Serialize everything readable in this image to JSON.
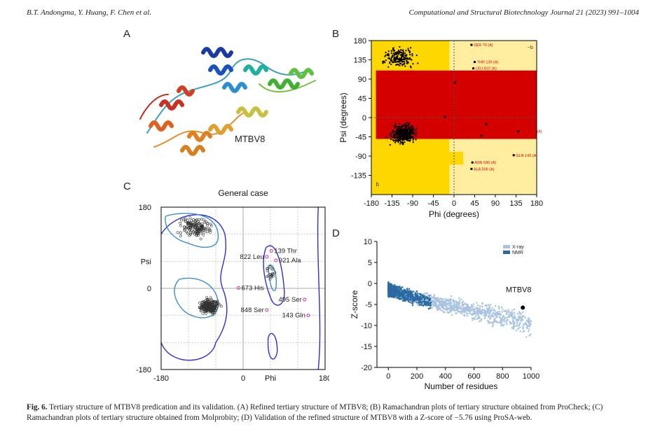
{
  "running_head": {
    "authors": "B.T. Andongma, Y. Huang, F. Chen et al.",
    "journal": "Computational and Structural Biotechnology Journal 21 (2023) 991–1004"
  },
  "panels": {
    "a": {
      "letter": "A",
      "label": "MTBV8"
    },
    "b": {
      "letter": "B"
    },
    "c": {
      "letter": "C"
    },
    "d": {
      "letter": "D"
    }
  },
  "chart_data": [
    {
      "panel": "B",
      "type": "scatter",
      "xlabel": "Phi (degrees)",
      "ylabel": "Psi (degrees)",
      "xlim": [
        -180,
        180
      ],
      "ylim": [
        -180,
        180
      ],
      "x_ticks": [
        "-180",
        "-135",
        "-90",
        "-45",
        "0",
        "45",
        "90",
        "135",
        "180"
      ],
      "y_ticks": [
        "180",
        "135",
        "90",
        "45",
        "0",
        "-45",
        "-90",
        "-135"
      ],
      "region_letters": [
        "A",
        "B",
        "L",
        "a",
        "b",
        "p",
        "~b"
      ],
      "annotations": [
        {
          "label": "SER 70 (A)",
          "x": 38,
          "y": 170
        },
        {
          "label": "THR 139 (A)",
          "x": 45,
          "y": 130
        },
        {
          "label": "LEU 822 (A)",
          "x": 42,
          "y": 115
        },
        {
          "label": "PRO 701 (A)",
          "x": 2,
          "y": 82
        },
        {
          "label": "HIS 673 (A)",
          "x": -20,
          "y": 2
        },
        {
          "label": "ALA 921 (A)",
          "x": 70,
          "y": -15
        },
        {
          "label": "SER 848 (A)",
          "x": 60,
          "y": -42
        },
        {
          "label": "SER 495 (A)",
          "x": 140,
          "y": -32
        },
        {
          "label": "GLN 143 (A)",
          "x": 130,
          "y": -88
        },
        {
          "label": "ASN 690 (A)",
          "x": 40,
          "y": -105
        },
        {
          "label": "ALA 506 (A)",
          "x": 38,
          "y": -120
        }
      ]
    },
    {
      "panel": "C",
      "type": "scatter",
      "title": "General case",
      "xlabel": "Phi",
      "ylabel": "Psi",
      "xlim": [
        -180,
        180
      ],
      "ylim": [
        -180,
        180
      ],
      "x_ticks": [
        "-180",
        "0",
        "180"
      ],
      "y_ticks": [
        "180",
        "0",
        "-180"
      ],
      "outliers": [
        {
          "label": "139 Thr",
          "x": 62,
          "y": 83
        },
        {
          "label": "822 Leu",
          "x": 52,
          "y": 70
        },
        {
          "label": "921 Ala",
          "x": 72,
          "y": 62
        },
        {
          "label": "673 His",
          "x": -10,
          "y": 1
        },
        {
          "label": "495 Ser",
          "x": 135,
          "y": -25
        },
        {
          "label": "848 Ser",
          "x": 52,
          "y": -48
        },
        {
          "label": "143 Gln",
          "x": 143,
          "y": -60
        }
      ]
    },
    {
      "panel": "D",
      "type": "scatter",
      "xlabel": "Number of residues",
      "ylabel": "Z-score",
      "xlim": [
        -80,
        1000
      ],
      "ylim": [
        -20,
        10
      ],
      "x_ticks": [
        0,
        200,
        400,
        600,
        800,
        1000
      ],
      "y_ticks": [
        10,
        5,
        0,
        -5,
        -10,
        -15,
        -20
      ],
      "legend": [
        "X-ray",
        "NMR"
      ],
      "legend_position": "top-right",
      "series_colors": {
        "xray": "#a8c3e0",
        "nmr": "#2a6aa3"
      },
      "highlight": {
        "label": "MTBV8",
        "x": 942,
        "y": -5.76
      }
    }
  ],
  "caption": {
    "fig_label": "Fig. 6.",
    "text": " Tertiary structure of MTBV8 predication and its validation. (A) Refined tertiary structure of MTBV8; (B) Ramachandran plots of tertiary structure obtained from ProCheck; (C) Ramachandran plots of tertiary structure obtained from Molprobity; (D) Validation of the refined structure of MTBV8 with a Z-score of −5.76 using ProSA-web."
  },
  "colors": {
    "core": "#d40000",
    "allowed": "#ffd700",
    "generous": "#ffeea0",
    "molprobity_contour": "#3b8ec8",
    "molprobity_outer": "#2f2fcf",
    "outlier": "#cc2fa0"
  }
}
